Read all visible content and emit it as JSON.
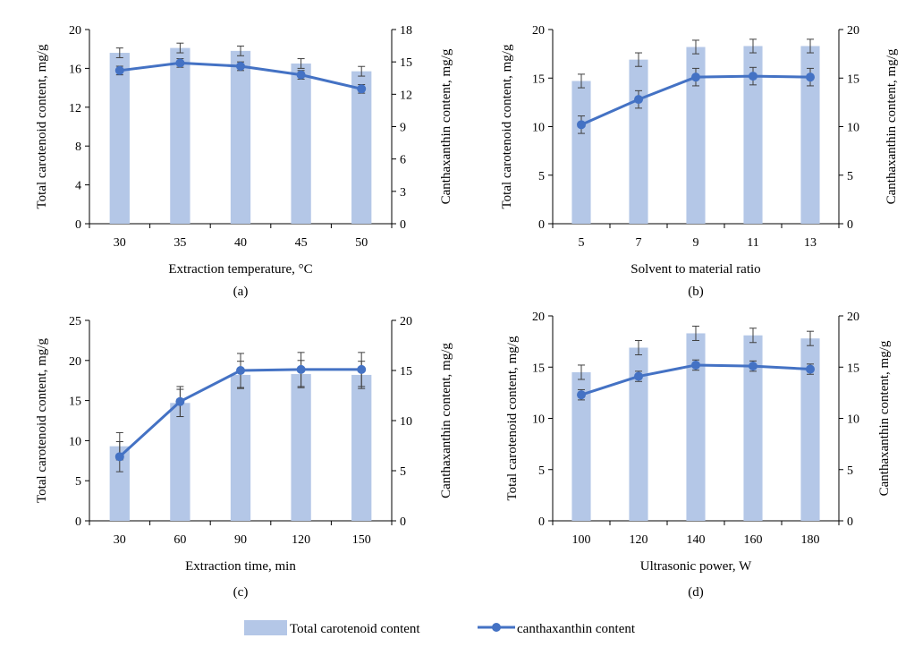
{
  "figure": {
    "legend": {
      "bar_label": "Total carotenoid content",
      "line_label": "canthaxanthin content"
    },
    "colors": {
      "bar": "#b4c7e7",
      "line": "#4472c4",
      "axis": "#000000",
      "errorbar": "#404040"
    }
  },
  "chart_data": [
    {
      "type": "bar+line",
      "panel_label": "(a)",
      "xlabel": "Extraction temperature, °C",
      "ylabel": "Total carotenoid content, mg/g",
      "y2label": "Canthaxanthin content, mg/g",
      "categories": [
        "30",
        "35",
        "40",
        "45",
        "50"
      ],
      "ylim": [
        0,
        20
      ],
      "yticks": [
        0,
        4,
        8,
        12,
        16,
        20
      ],
      "y2lim": [
        0,
        18
      ],
      "y2ticks": [
        0,
        3,
        6,
        9,
        12,
        15,
        18
      ],
      "series": [
        {
          "name": "Total carotenoid content",
          "type": "bar",
          "axis": "left",
          "values": [
            17.6,
            18.1,
            17.8,
            16.5,
            15.7
          ],
          "errors": [
            0.5,
            0.5,
            0.5,
            0.5,
            0.5
          ]
        },
        {
          "name": "canthaxanthin content",
          "type": "line",
          "axis": "right",
          "values": [
            14.2,
            14.9,
            14.6,
            13.8,
            12.5
          ],
          "errors": [
            0.4,
            0.4,
            0.4,
            0.4,
            0.4
          ]
        }
      ]
    },
    {
      "type": "bar+line",
      "panel_label": "(b)",
      "xlabel": "Solvent to material ratio",
      "ylabel": "Total carotenoid content, mg/g",
      "y2label": "Canthaxanthin content, mg/g",
      "categories": [
        "5",
        "7",
        "9",
        "11",
        "13"
      ],
      "ylim": [
        0,
        20
      ],
      "yticks": [
        0,
        5,
        10,
        15,
        20
      ],
      "y2lim": [
        0,
        20
      ],
      "y2ticks": [
        0,
        5,
        10,
        15,
        20
      ],
      "series": [
        {
          "name": "Total carotenoid content",
          "type": "bar",
          "axis": "left",
          "values": [
            14.7,
            16.9,
            18.2,
            18.3,
            18.3
          ],
          "errors": [
            0.7,
            0.7,
            0.7,
            0.7,
            0.7
          ]
        },
        {
          "name": "canthaxanthin content",
          "type": "line",
          "axis": "right",
          "values": [
            10.2,
            12.8,
            15.1,
            15.2,
            15.1
          ],
          "errors": [
            0.9,
            0.9,
            0.9,
            0.9,
            0.9
          ]
        }
      ]
    },
    {
      "type": "bar+line",
      "panel_label": "(c)",
      "xlabel": "Extraction time, min",
      "ylabel": "Total carotenoid content, mg/g",
      "y2label": "Canthaxanthin content, mg/g",
      "categories": [
        "30",
        "60",
        "90",
        "120",
        "150"
      ],
      "ylim": [
        0,
        25
      ],
      "yticks": [
        0,
        5,
        10,
        15,
        20,
        25
      ],
      "y2lim": [
        0,
        20
      ],
      "y2ticks": [
        0,
        5,
        10,
        15,
        20
      ],
      "series": [
        {
          "name": "Total carotenoid content",
          "type": "bar",
          "axis": "left",
          "values": [
            9.3,
            14.7,
            18.2,
            18.3,
            18.2
          ],
          "errors": [
            1.7,
            1.7,
            1.7,
            1.7,
            1.7
          ]
        },
        {
          "name": "canthaxanthin content",
          "type": "line",
          "axis": "right",
          "values": [
            6.4,
            11.9,
            15.0,
            15.1,
            15.1
          ],
          "errors": [
            1.5,
            1.5,
            1.7,
            1.7,
            1.7
          ]
        }
      ]
    },
    {
      "type": "bar+line",
      "panel_label": "(d)",
      "xlabel": "Ultrasonic power, W",
      "ylabel": "Total carotenoid content, mg/g",
      "y2label": "Canthaxanthin content, mg/g",
      "categories": [
        "100",
        "120",
        "140",
        "160",
        "180"
      ],
      "ylim": [
        0,
        20
      ],
      "yticks": [
        0,
        5,
        10,
        15,
        20
      ],
      "y2lim": [
        0,
        20
      ],
      "y2ticks": [
        0,
        5,
        10,
        15,
        20
      ],
      "series": [
        {
          "name": "Total carotenoid content",
          "type": "bar",
          "axis": "left",
          "values": [
            14.5,
            16.9,
            18.3,
            18.1,
            17.8
          ],
          "errors": [
            0.7,
            0.7,
            0.7,
            0.7,
            0.7
          ]
        },
        {
          "name": "canthaxanthin content",
          "type": "line",
          "axis": "right",
          "values": [
            12.3,
            14.1,
            15.2,
            15.1,
            14.8
          ],
          "errors": [
            0.5,
            0.5,
            0.5,
            0.5,
            0.5
          ]
        }
      ]
    }
  ]
}
